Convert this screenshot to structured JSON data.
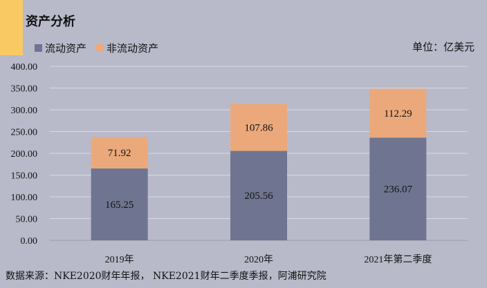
{
  "header": {
    "title": "资产分析",
    "unit": "单位：亿美元"
  },
  "footer": {
    "source": "数据来源：NKE2020财年年报， NKE2021财年二季度季报，阿浦研究院"
  },
  "colors": {
    "current_assets": "#6f7590",
    "non_current_assets": "#eba97b",
    "accent": "#f9ca63",
    "background": "#b8bac9"
  },
  "chart_data": {
    "type": "bar",
    "stacked": true,
    "categories": [
      "2019年",
      "2020年",
      "2021年第二季度"
    ],
    "series": [
      {
        "name": "流动资产",
        "values": [
          165.25,
          205.56,
          236.07
        ]
      },
      {
        "name": "非流动资产",
        "values": [
          71.92,
          107.86,
          112.29
        ]
      }
    ],
    "y_ticks": [
      "0.00",
      "50.00",
      "100.00",
      "150.00",
      "200.00",
      "250.00",
      "300.00",
      "350.00",
      "400.00"
    ],
    "data_labels": [
      [
        "165.25",
        "205.56",
        "236.07"
      ],
      [
        "71.92",
        "107.86",
        "112.29"
      ]
    ],
    "ylim": [
      0,
      400
    ],
    "grid": true,
    "legend": "top-left"
  }
}
